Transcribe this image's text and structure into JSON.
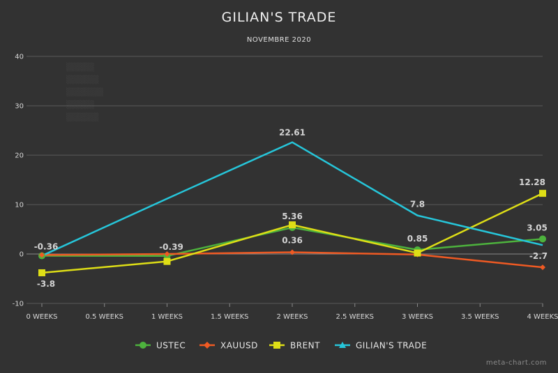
{
  "chart_data": {
    "type": "line",
    "title": "GILIAN'S TRADE",
    "subtitle": "NOVEMBRE 2020",
    "x": [
      0,
      1,
      2,
      3,
      4
    ],
    "x_ticks": [
      {
        "value": 0,
        "label": "0 WEEKS"
      },
      {
        "value": 0.5,
        "label": "0.5 WEEKS"
      },
      {
        "value": 1,
        "label": "1 WEEKS"
      },
      {
        "value": 1.5,
        "label": "1.5 WEEKS"
      },
      {
        "value": 2,
        "label": "2 WEEKS"
      },
      {
        "value": 2.5,
        "label": "2.5 WEEKS"
      },
      {
        "value": 3,
        "label": "3 WEEKS"
      },
      {
        "value": 3.5,
        "label": "3.5 WEEKS"
      },
      {
        "value": 4,
        "label": "4 WEEKS"
      }
    ],
    "xlim": [
      0,
      4
    ],
    "y_ticks": [
      -10,
      0,
      10,
      20,
      30,
      40
    ],
    "ylim": [
      -10,
      40
    ],
    "grid": true,
    "legend_position": "bottom",
    "series": [
      {
        "name": "USTEC",
        "color": "#4db33d",
        "marker": "circle",
        "values": [
          -0.36,
          -0.39,
          5.36,
          0.85,
          3.05
        ],
        "labels": [
          "-0.36",
          "-0.39",
          "5.36",
          "0.85",
          "3.05"
        ]
      },
      {
        "name": "XAUUSD",
        "color": "#f05a23",
        "marker": "diamond",
        "values": [
          -0.2,
          0,
          0.36,
          -0.1,
          -2.7
        ],
        "labels": [
          "",
          "",
          "0.36",
          "",
          "-2.7"
        ]
      },
      {
        "name": "BRENT",
        "color": "#dede16",
        "marker": "square",
        "values": [
          -3.8,
          -1.5,
          5.9,
          0.2,
          12.28
        ],
        "labels": [
          "-3.8",
          "",
          "",
          "",
          "12.28"
        ]
      },
      {
        "name": "GILIAN'S TRADE",
        "color": "#26c6da",
        "marker": "triangle",
        "values": [
          -0.36,
          11.2,
          22.61,
          7.8,
          1.8
        ],
        "labels": [
          "",
          "",
          "22.61",
          "7.8",
          ""
        ]
      }
    ]
  },
  "credit": "meta-chart.com"
}
